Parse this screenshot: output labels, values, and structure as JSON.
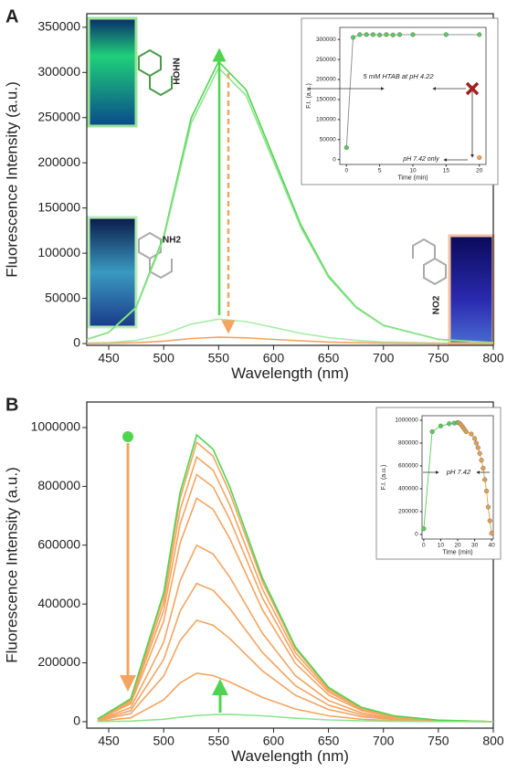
{
  "chart_data": [
    {
      "type": "line",
      "panel_label": "A",
      "x_label": "Wavelength (nm)",
      "y_label": "Fluorescence Intensity (a.u.)",
      "x": [
        430,
        450,
        475,
        500,
        525,
        550,
        575,
        600,
        625,
        650,
        675,
        700,
        750,
        800
      ],
      "series": [
        {
          "color": "#4fd44f",
          "values": [
            4680,
            12480,
            40560,
            118560,
            249600,
            312000,
            280800,
            205920,
            131040,
            74880,
            40560,
            20280,
            4680,
            936
          ]
        },
        {
          "color": "#8fe38f",
          "values": [
            4575,
            12200,
            39650,
            115900,
            244000,
            305000,
            274500,
            201300,
            128100,
            73200,
            39650,
            19825,
            4575,
            915
          ]
        },
        {
          "color": "#a8eca8",
          "values": [
            405,
            1080,
            3510,
            10260,
            21600,
            27000,
            24300,
            17820,
            11340,
            6480,
            3510,
            1755,
            405,
            81
          ]
        },
        {
          "color": "#f4a460",
          "values": [
            105,
            280,
            910,
            2660,
            5600,
            7000,
            6300,
            4620,
            2940,
            1680,
            910,
            455,
            105,
            21
          ]
        }
      ],
      "xlim": [
        430,
        800
      ],
      "xticks": [
        450,
        500,
        550,
        600,
        650,
        700,
        750,
        800
      ],
      "ylim": [
        -2000,
        365000
      ],
      "yticks": [
        0,
        50000,
        100000,
        150000,
        200000,
        250000,
        300000,
        350000
      ],
      "annotations": [
        "NHOH",
        "NH2",
        "NO2"
      ]
    },
    {
      "type": "line",
      "markers": true,
      "x_label": "Time (min)",
      "y_label": "F.I. (a.u.)",
      "series": [
        {
          "color": "#888888",
          "marker_color": "#5cc85c",
          "x": [
            0,
            1,
            2,
            3,
            4,
            5,
            6,
            7,
            8,
            10,
            15,
            20
          ],
          "values": [
            30000,
            305000,
            312000,
            312000,
            312000,
            311000,
            312000,
            311000,
            312000,
            312000,
            312000,
            312000
          ]
        },
        {
          "color": "#888888",
          "marker_color": "#f4a460",
          "x": [
            20
          ],
          "values": [
            5000
          ]
        }
      ],
      "xlim": [
        -1,
        21
      ],
      "xticks": [
        0,
        5,
        10,
        15,
        20
      ],
      "ylim": [
        -12000,
        330000
      ],
      "yticks": [
        0,
        50000,
        100000,
        150000,
        200000,
        250000,
        300000
      ],
      "annotations": [
        "5 mM HTAB at pH 4.22",
        "pH 7.42 only"
      ]
    },
    {
      "type": "line",
      "panel_label": "B",
      "x_label": "Wavelength (nm)",
      "y_label": "Fluorescence Intensity (a.u.)",
      "x": [
        440,
        470,
        500,
        515,
        530,
        545,
        560,
        590,
        620,
        650,
        680,
        710,
        750,
        800
      ],
      "series": [
        {
          "color": "#f4a460",
          "values": [
            9500,
            76000,
            427500,
            760000,
            950000,
            902500,
            779000,
            475000,
            247000,
            114000,
            47500,
            19000,
            4750,
            0
          ]
        },
        {
          "color": "#f4a460",
          "values": [
            9000,
            72000,
            405000,
            720000,
            900000,
            855000,
            738000,
            450000,
            234000,
            108000,
            45000,
            18000,
            4500,
            0
          ]
        },
        {
          "color": "#f4a460",
          "values": [
            8400,
            67200,
            378000,
            672000,
            840000,
            798000,
            688800,
            420000,
            218400,
            100800,
            42000,
            16800,
            4200,
            0
          ]
        },
        {
          "color": "#f4a460",
          "values": [
            7600,
            60800,
            342000,
            608000,
            760000,
            722000,
            623200,
            380000,
            197600,
            91200,
            38000,
            15200,
            3800,
            0
          ]
        },
        {
          "color": "#f4a460",
          "values": [
            6000,
            48000,
            270000,
            480000,
            600000,
            570000,
            492000,
            300000,
            156000,
            72000,
            30000,
            12000,
            3000,
            0
          ]
        },
        {
          "color": "#f4a460",
          "values": [
            4700,
            37600,
            211500,
            376000,
            470000,
            446500,
            385400,
            235000,
            122200,
            56400,
            23500,
            9400,
            2350,
            0
          ]
        },
        {
          "color": "#f4a460",
          "values": [
            3450,
            27600,
            155250,
            276000,
            345000,
            327750,
            282900,
            172500,
            89700,
            41400,
            17250,
            6900,
            1725,
            0
          ]
        },
        {
          "color": "#f4a460",
          "values": [
            1650,
            13200,
            74250,
            132000,
            165000,
            156750,
            135300,
            82500,
            42900,
            19800,
            8250,
            3300,
            825,
            0
          ]
        },
        {
          "color": "#4fd44f",
          "values": [
            9750,
            78000,
            438750,
            780000,
            975000,
            926250,
            799500,
            487500,
            253500,
            117000,
            48750,
            19500,
            4875,
            0
          ]
        },
        {
          "color": "#8fe38f",
          "values": [
            500,
            2000,
            8000,
            15000,
            21000,
            24000,
            25000,
            20000,
            12000,
            6000,
            3000,
            1000,
            300,
            0
          ]
        }
      ],
      "xlim": [
        430,
        800
      ],
      "xticks": [
        450,
        500,
        550,
        600,
        650,
        700,
        750,
        800
      ],
      "ylim": [
        -22000,
        1087000
      ],
      "yticks": [
        0,
        200000,
        400000,
        600000,
        800000,
        1000000
      ]
    },
    {
      "type": "line",
      "markers": true,
      "x_label": "Time (min)",
      "y_label": "F.I. (a.u.)",
      "series": [
        {
          "color": "#5cc85c",
          "marker_color": "#5cc85c",
          "x": [
            0,
            5,
            10,
            15,
            18,
            20
          ],
          "values": [
            50000,
            900000,
            950000,
            970000,
            975000,
            980000
          ]
        },
        {
          "color": "#d9a24a",
          "marker_color": "#e0a050",
          "x": [
            21,
            22,
            23,
            24,
            25,
            28,
            30,
            31,
            32,
            33,
            34,
            35,
            36,
            37,
            38,
            39,
            40
          ],
          "values": [
            975000,
            960000,
            940000,
            920000,
            900000,
            880000,
            840000,
            800000,
            760000,
            710000,
            650000,
            580000,
            480000,
            380000,
            240000,
            120000,
            10000
          ]
        }
      ],
      "xlim": [
        -1,
        41
      ],
      "xticks": [
        0,
        10,
        20,
        30,
        40
      ],
      "ylim": [
        -40000,
        1040000
      ],
      "yticks": [
        0,
        200000,
        400000,
        600000,
        800000,
        1000000
      ],
      "annotations": [
        "pH 7.42"
      ]
    }
  ]
}
